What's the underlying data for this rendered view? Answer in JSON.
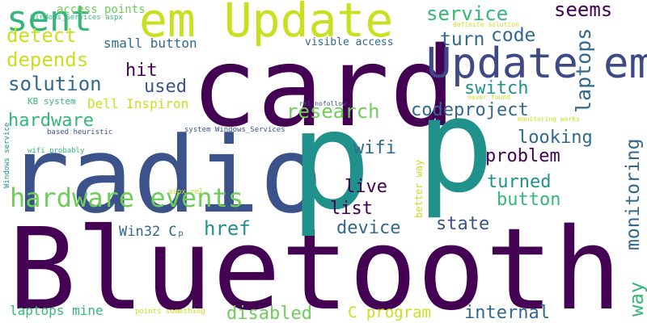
{
  "background": "#ffffff",
  "palette": {
    "dark_purple": "#440154",
    "indigo": "#3b528b",
    "blue": "#31688e",
    "teal": "#21918c",
    "green": "#35b779",
    "lime": "#6ece58",
    "yellow": "#c8e020"
  },
  "words": [
    {
      "text": "Bluetooth",
      "color": "#440154"
    },
    {
      "text": "card",
      "color": "#440154"
    },
    {
      "text": "radio",
      "color": "#3b528b"
    },
    {
      "text": "p",
      "color": "#21918c"
    },
    {
      "text": "p",
      "color": "#21918c"
    },
    {
      "text": "em Update",
      "color": "#c8e020"
    },
    {
      "text": "Update em",
      "color": "#3e4989"
    },
    {
      "text": "hardware events",
      "color": "#6ece58"
    },
    {
      "text": "sent",
      "color": "#35b779"
    },
    {
      "text": "detect",
      "color": "#c8e020"
    },
    {
      "text": "depends",
      "color": "#c8e020"
    },
    {
      "text": "solution",
      "color": "#31688e"
    },
    {
      "text": "hardware",
      "color": "#35b779"
    },
    {
      "text": "service",
      "color": "#35b779"
    },
    {
      "text": "seems",
      "color": "#440154"
    },
    {
      "text": "code",
      "color": "#31688e"
    },
    {
      "text": "turn",
      "color": "#31688e"
    },
    {
      "text": "laptops",
      "color": "#31688e"
    },
    {
      "text": "hit",
      "color": "#440154"
    },
    {
      "text": "used",
      "color": "#3b528b"
    },
    {
      "text": "switch",
      "color": "#21918c"
    },
    {
      "text": "codeproject",
      "color": "#31688e"
    },
    {
      "text": "research",
      "color": "#6ece58"
    },
    {
      "text": "wifi",
      "color": "#31688e"
    },
    {
      "text": "looking",
      "color": "#31688e"
    },
    {
      "text": "problem",
      "color": "#440154"
    },
    {
      "text": "monitoring",
      "color": "#31688e"
    },
    {
      "text": "turned",
      "color": "#21918c"
    },
    {
      "text": "live",
      "color": "#440154"
    },
    {
      "text": "list",
      "color": "#440154"
    },
    {
      "text": "button",
      "color": "#35b779"
    },
    {
      "text": "href",
      "color": "#21918c"
    },
    {
      "text": "device",
      "color": "#31688e"
    },
    {
      "text": "state",
      "color": "#3b528b"
    },
    {
      "text": "way",
      "color": "#35b779"
    },
    {
      "text": "Win32 Cₚ",
      "color": "#31688e"
    },
    {
      "text": "disabled",
      "color": "#6ece58"
    },
    {
      "text": "C program",
      "color": "#c8e020"
    },
    {
      "text": "internal",
      "color": "#31688e"
    },
    {
      "text": "laptops mine",
      "color": "#35b779"
    },
    {
      "text": "access points",
      "color": "#6ece58"
    },
    {
      "text": "small button",
      "color": "#31688e"
    },
    {
      "text": "visible access",
      "color": "#31688e"
    },
    {
      "text": "Dell Inspiron",
      "color": "#c8e020"
    },
    {
      "text": "KB system",
      "color": "#35b779"
    },
    {
      "text": "Windows_Services aspx",
      "color": "#35b779"
    },
    {
      "text": "definite solution",
      "color": "#c8e020"
    },
    {
      "text": "rel nofollow",
      "color": "#3b528b"
    },
    {
      "text": "never found",
      "color": "#c8e020"
    },
    {
      "text": "monitoring works",
      "color": "#c8e020"
    },
    {
      "text": "based heuristic",
      "color": "#3b528b"
    },
    {
      "text": "system Windows_Services",
      "color": "#3b528b"
    },
    {
      "text": "wifi probably",
      "color": "#35b779"
    },
    {
      "text": "Windows service",
      "color": "#21918c"
    },
    {
      "text": "better way",
      "color": "#c8e020"
    },
    {
      "text": "aspx rel",
      "color": "#c8e020"
    },
    {
      "text": "points something",
      "color": "#c8e020"
    }
  ]
}
